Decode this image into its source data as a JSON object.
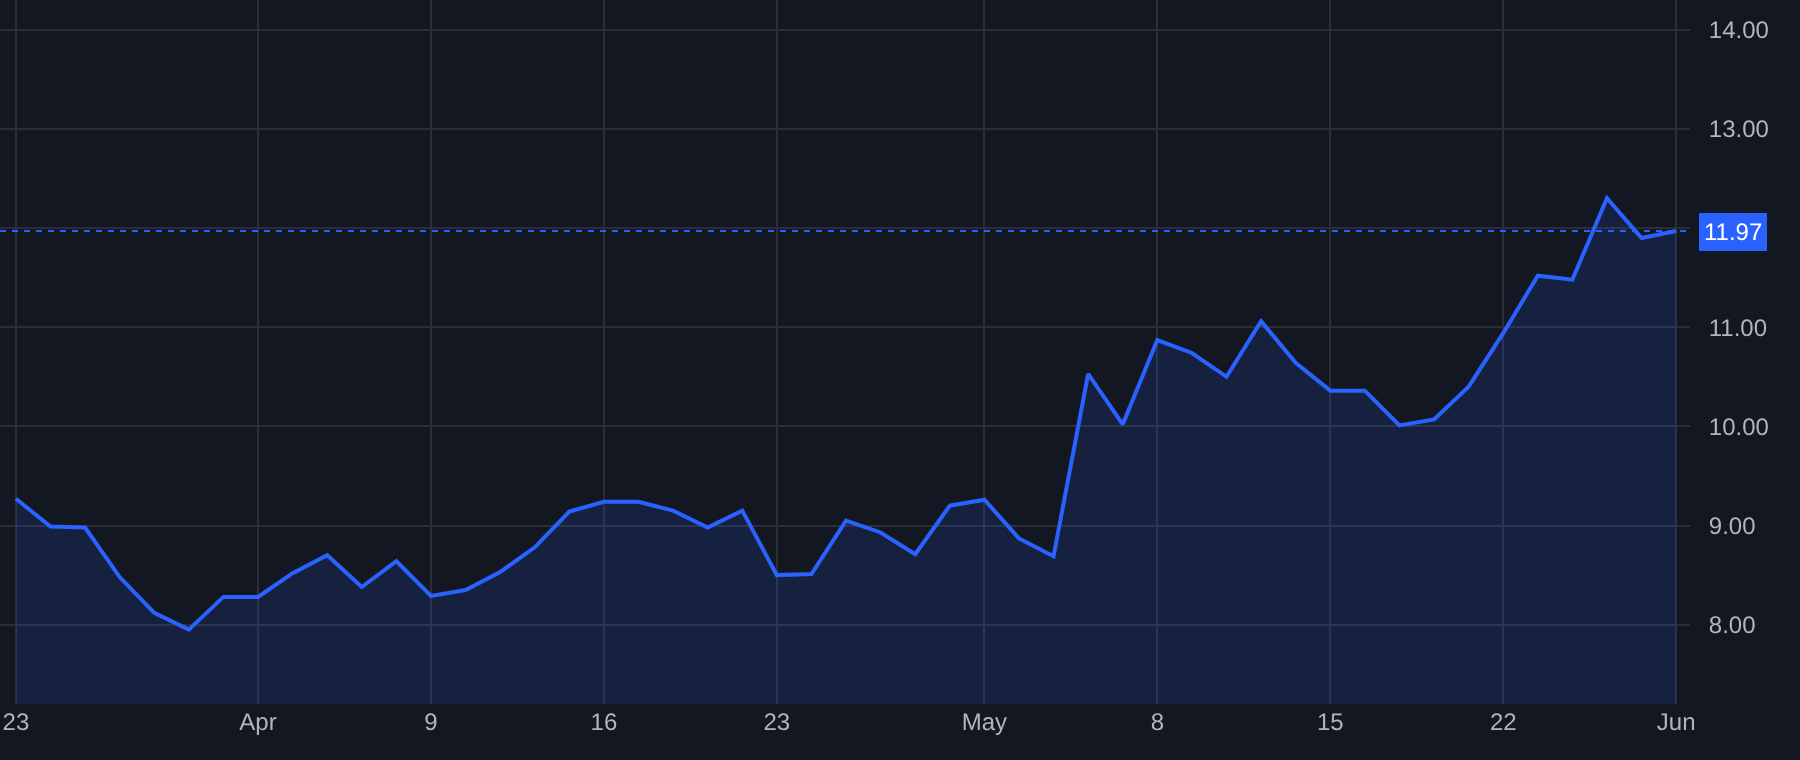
{
  "chart_data": {
    "type": "area",
    "categories": [
      "23",
      null,
      null,
      null,
      null,
      null,
      null,
      "Apr",
      null,
      null,
      null,
      null,
      "9",
      null,
      null,
      null,
      null,
      "16",
      null,
      null,
      null,
      null,
      "23",
      null,
      null,
      null,
      null,
      null,
      "May",
      null,
      null,
      null,
      null,
      "8",
      null,
      null,
      null,
      null,
      "15",
      null,
      null,
      null,
      null,
      "22",
      null,
      null,
      null,
      null,
      "Jun"
    ],
    "series": [
      {
        "color": "#2962ff",
        "values": [
          9.27,
          8.99,
          8.98,
          8.48,
          8.12,
          7.95,
          8.28,
          8.28,
          8.52,
          8.7,
          8.38,
          8.64,
          8.29,
          8.35,
          8.53,
          8.78,
          9.14,
          9.24,
          9.24,
          9.15,
          8.98,
          9.15,
          8.5,
          8.51,
          9.05,
          8.93,
          8.71,
          9.2,
          9.26,
          8.87,
          8.69,
          10.53,
          10.02,
          10.87,
          10.74,
          10.5,
          11.06,
          10.64,
          10.36,
          10.36,
          10.01,
          10.07,
          10.4,
          10.94,
          11.52,
          11.48,
          12.3,
          11.9,
          11.97
        ]
      }
    ],
    "ylim": [
      7.2,
      14.3
    ],
    "yticks": [
      {
        "value": 8,
        "label": "8.00"
      },
      {
        "value": 9,
        "label": "9.00"
      },
      {
        "value": 10,
        "label": "10.00"
      },
      {
        "value": 11,
        "label": "11.00"
      },
      {
        "value": 12,
        "label": null
      },
      {
        "value": 13,
        "label": "13.00"
      },
      {
        "value": 14,
        "label": "14.00"
      }
    ],
    "grid": true,
    "ref_lines": [
      {
        "axis": "y",
        "value": 11.97,
        "label": "11.97",
        "color": "#2962ff",
        "line_style": "dotted"
      }
    ]
  }
}
